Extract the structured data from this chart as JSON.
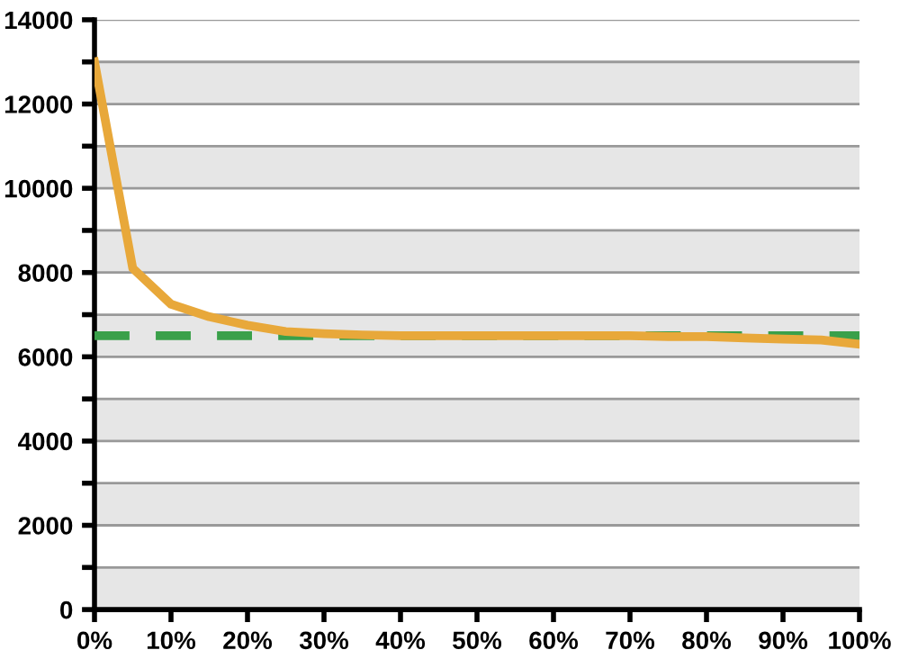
{
  "chart_data": {
    "type": "line",
    "x": [
      0,
      5,
      10,
      15,
      20,
      25,
      30,
      35,
      40,
      45,
      50,
      55,
      60,
      65,
      70,
      75,
      80,
      85,
      90,
      95,
      100
    ],
    "series": [
      {
        "color": "#e8a83a",
        "values": [
          13000,
          8100,
          7250,
          6950,
          6750,
          6600,
          6550,
          6520,
          6500,
          6500,
          6500,
          6500,
          6500,
          6500,
          6500,
          6480,
          6480,
          6450,
          6420,
          6400,
          6300
        ]
      }
    ],
    "xlim": [
      0,
      100
    ],
    "xticks": [
      {
        "value": 0,
        "label": "0%"
      },
      {
        "value": 10,
        "label": "10%"
      },
      {
        "value": 20,
        "label": "20%"
      },
      {
        "value": 30,
        "label": "30%"
      },
      {
        "value": 40,
        "label": "40%"
      },
      {
        "value": 50,
        "label": "50%"
      },
      {
        "value": 60,
        "label": "60%"
      },
      {
        "value": 70,
        "label": "70%"
      },
      {
        "value": 80,
        "label": "80%"
      },
      {
        "value": 90,
        "label": "90%"
      },
      {
        "value": 100,
        "label": "100%"
      }
    ],
    "ylim": [
      0,
      14000
    ],
    "yticks": [
      0,
      {
        "value": 1000,
        "label": null
      },
      2000,
      {
        "value": 3000,
        "label": null
      },
      4000,
      {
        "value": 5000,
        "label": null
      },
      6000,
      {
        "value": 7000,
        "label": null
      },
      8000,
      {
        "value": 9000,
        "label": null
      },
      10000,
      {
        "value": 11000,
        "label": null
      },
      12000,
      {
        "value": 13000,
        "label": null
      },
      14000
    ],
    "grid": "y",
    "ref_lines": [
      {
        "axis": "y",
        "value": 6500,
        "color": "#3aa04a",
        "line_style": "dashed"
      }
    ],
    "marker": "none",
    "line_style": "solid"
  }
}
